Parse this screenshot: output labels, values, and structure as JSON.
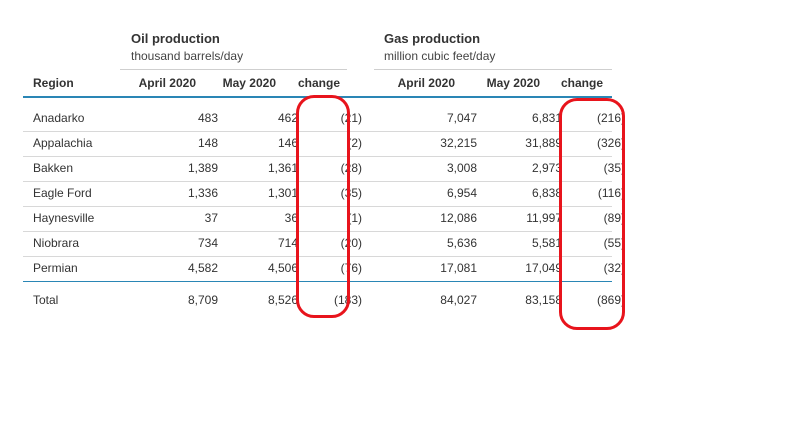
{
  "groups": {
    "oil": {
      "title": "Oil production",
      "unit": "thousand barrels/day"
    },
    "gas": {
      "title": "Gas production",
      "unit": "million cubic feet/day"
    }
  },
  "columns": [
    "Region",
    "April 2020",
    "May 2020",
    "change",
    "April 2020",
    "May 2020",
    "change"
  ],
  "rows": [
    [
      "Anadarko",
      "483",
      "462",
      "(21)",
      "7,047",
      "6,831",
      "(216)"
    ],
    [
      "Appalachia",
      "148",
      "146",
      "(2)",
      "32,215",
      "31,889",
      "(326)"
    ],
    [
      "Bakken",
      "1,389",
      "1,361",
      "(28)",
      "3,008",
      "2,973",
      "(35)"
    ],
    [
      "Eagle Ford",
      "1,336",
      "1,301",
      "(35)",
      "6,954",
      "6,838",
      "(116)"
    ],
    [
      "Haynesville",
      "37",
      "36",
      "(1)",
      "12,086",
      "11,997",
      "(89)"
    ],
    [
      "Niobrara",
      "734",
      "714",
      "(20)",
      "5,636",
      "5,581",
      "(55)"
    ],
    [
      "Permian",
      "4,582",
      "4,506",
      "(76)",
      "17,081",
      "17,049",
      "(32)"
    ]
  ],
  "total": [
    "Total",
    "8,709",
    "8,526",
    "(183)",
    "84,027",
    "83,158",
    "(869)"
  ],
  "colors": {
    "accent_rule": "#2a86b5",
    "highlight": "#e8141c"
  }
}
